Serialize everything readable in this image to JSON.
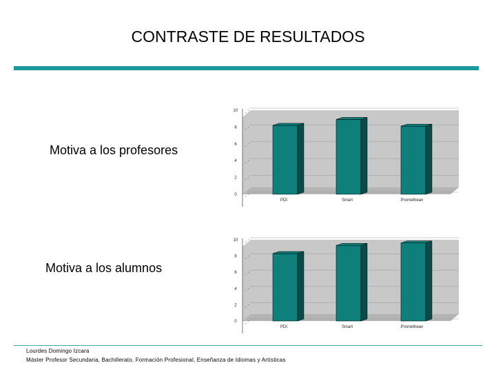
{
  "slide": {
    "title": "CONTRASTE DE RESULTADOS"
  },
  "rows": [
    {
      "label": "Motiva a los profesores"
    },
    {
      "label": "Motiva a los alumnos"
    }
  ],
  "colors": {
    "accent": "#1a9a9e",
    "bar_front": "#0f7f7c",
    "bar_side": "#0a4a48",
    "wall": "#c8c8c8",
    "floor": "#b4b4b4"
  },
  "chart_data": [
    {
      "type": "bar",
      "categories": [
        "PDI",
        "Smart",
        "Promethean"
      ],
      "values": [
        8.2,
        8.9,
        8.1
      ],
      "ylim": [
        0,
        10
      ],
      "yticks": [
        0,
        2,
        4,
        6,
        8,
        10
      ],
      "grid": true
    },
    {
      "type": "bar",
      "categories": [
        "PDI",
        "Smart",
        "Promethean"
      ],
      "values": [
        8.3,
        9.3,
        9.6
      ],
      "ylim": [
        0,
        10
      ],
      "yticks": [
        0,
        2,
        4,
        6,
        8,
        10
      ],
      "grid": true
    }
  ],
  "footer": {
    "author": "Lourdes Domingo Izcara",
    "program": "Máster Profesor Secundaria, Bachillerato, Formación Profesional, Enseñanza de Idiomas y Artísticas"
  }
}
